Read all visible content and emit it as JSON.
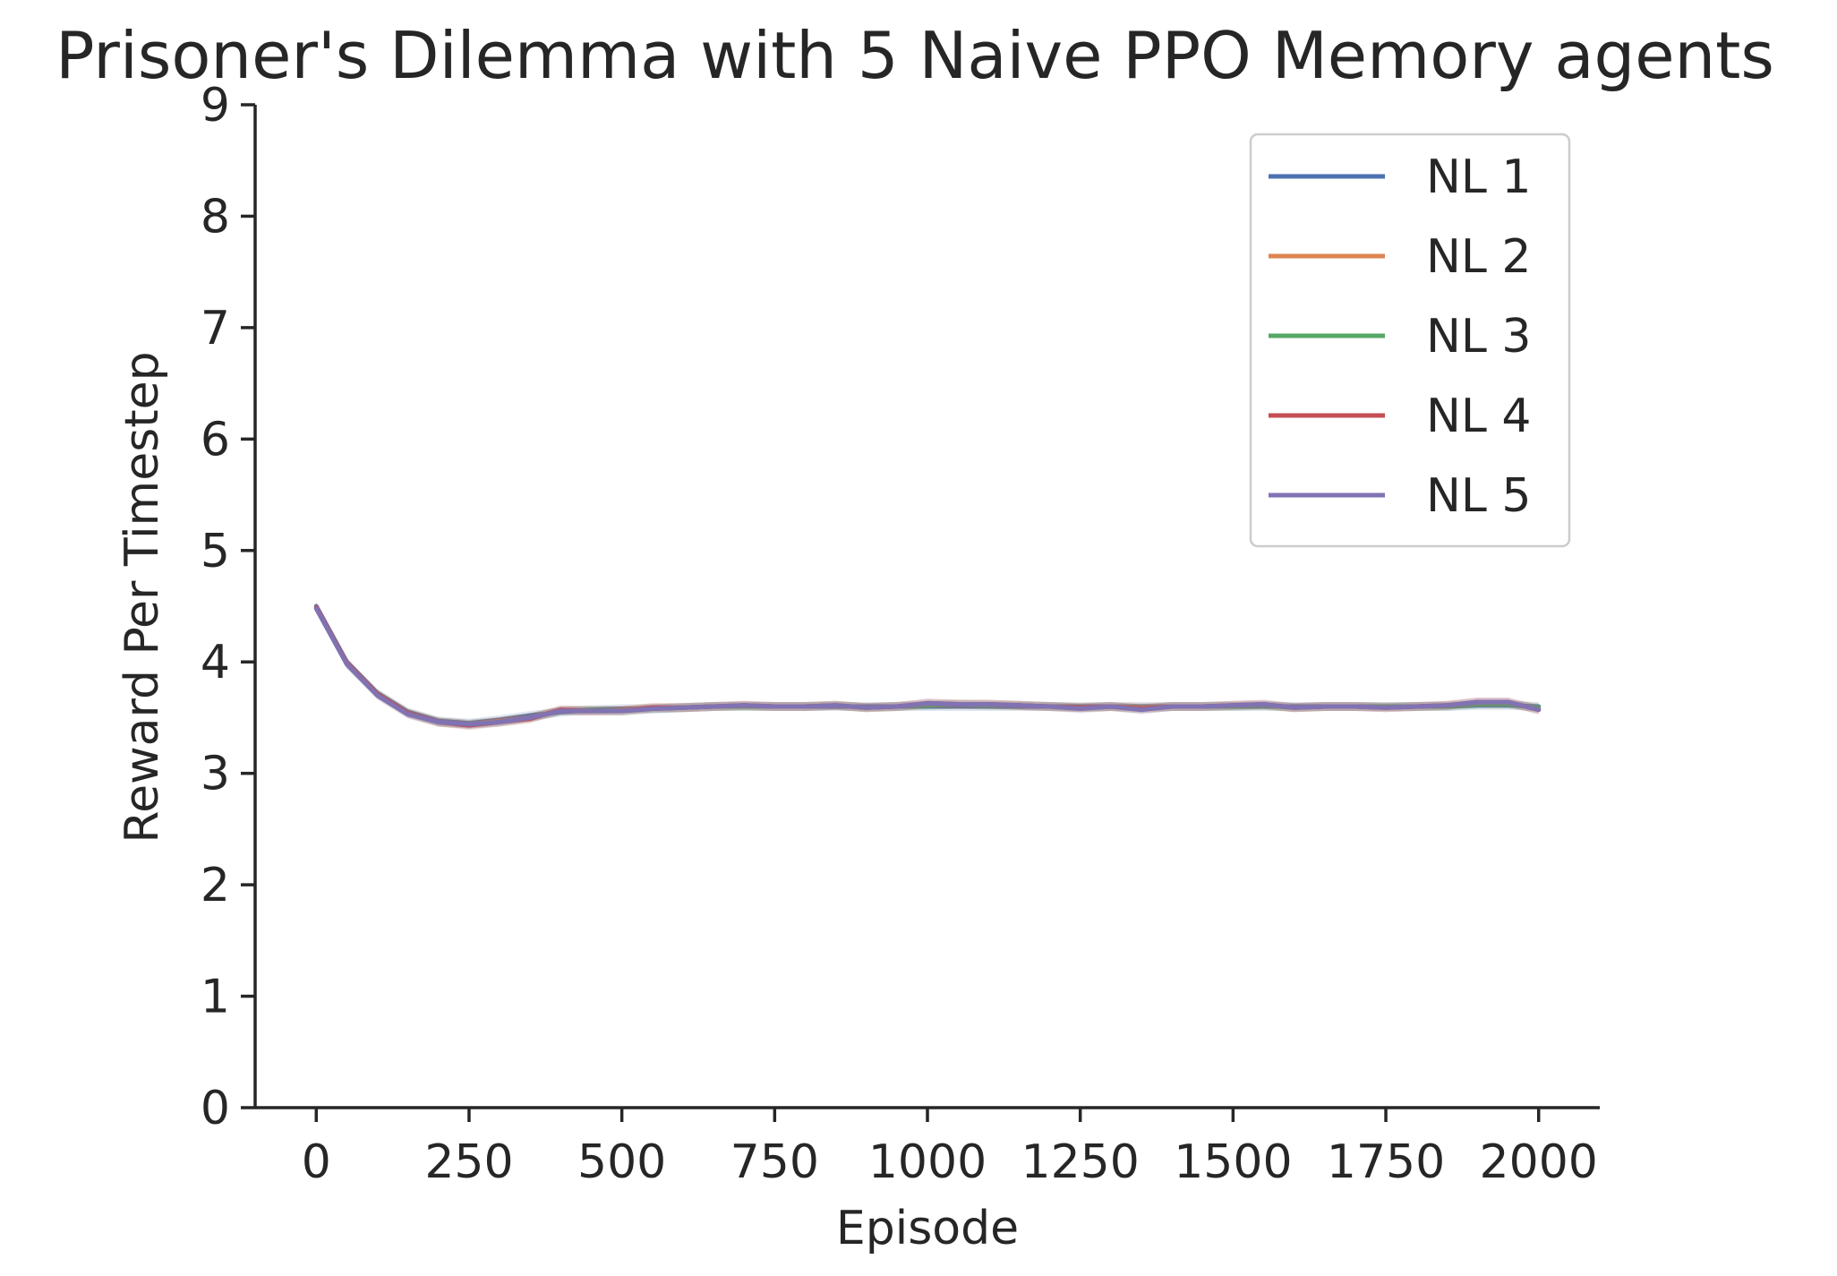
{
  "chart_data": {
    "type": "line",
    "title": "Prisoner's Dilemma with 5 Naive PPO Memory agents",
    "xlabel": "Episode",
    "ylabel": "Reward Per Timestep",
    "xlim": [
      -100,
      2100
    ],
    "ylim": [
      0,
      9
    ],
    "xticks": [
      0,
      250,
      500,
      750,
      1000,
      1250,
      1500,
      1750,
      2000
    ],
    "yticks": [
      0,
      1,
      2,
      3,
      4,
      5,
      6,
      7,
      8,
      9
    ],
    "grid": false,
    "legend_position": "top-right",
    "x": [
      0,
      50,
      100,
      150,
      200,
      250,
      300,
      350,
      400,
      450,
      500,
      550,
      600,
      650,
      700,
      750,
      800,
      850,
      900,
      950,
      1000,
      1050,
      1100,
      1150,
      1200,
      1250,
      1300,
      1350,
      1400,
      1450,
      1500,
      1550,
      1600,
      1650,
      1700,
      1750,
      1800,
      1850,
      1900,
      1950,
      2000
    ],
    "series": [
      {
        "name": "NL 1",
        "color": "#4c72b0",
        "values": [
          4.5,
          4.0,
          3.72,
          3.55,
          3.47,
          3.45,
          3.48,
          3.52,
          3.55,
          3.57,
          3.58,
          3.58,
          3.59,
          3.6,
          3.6,
          3.6,
          3.6,
          3.6,
          3.6,
          3.6,
          3.6,
          3.6,
          3.6,
          3.6,
          3.6,
          3.6,
          3.6,
          3.6,
          3.6,
          3.6,
          3.6,
          3.6,
          3.6,
          3.6,
          3.6,
          3.6,
          3.6,
          3.6,
          3.61,
          3.61,
          3.6
        ]
      },
      {
        "name": "NL 2",
        "color": "#dd8452",
        "values": [
          4.49,
          3.99,
          3.71,
          3.54,
          3.46,
          3.44,
          3.47,
          3.5,
          3.57,
          3.56,
          3.57,
          3.59,
          3.59,
          3.6,
          3.61,
          3.6,
          3.6,
          3.61,
          3.59,
          3.6,
          3.62,
          3.62,
          3.62,
          3.61,
          3.6,
          3.59,
          3.6,
          3.59,
          3.6,
          3.6,
          3.61,
          3.61,
          3.59,
          3.6,
          3.6,
          3.59,
          3.6,
          3.61,
          3.63,
          3.63,
          3.58
        ]
      },
      {
        "name": "NL 3",
        "color": "#55a868",
        "values": [
          4.48,
          3.98,
          3.71,
          3.54,
          3.46,
          3.44,
          3.46,
          3.5,
          3.56,
          3.57,
          3.56,
          3.58,
          3.59,
          3.6,
          3.6,
          3.6,
          3.6,
          3.61,
          3.59,
          3.6,
          3.61,
          3.62,
          3.61,
          3.61,
          3.6,
          3.59,
          3.6,
          3.58,
          3.6,
          3.6,
          3.6,
          3.61,
          3.59,
          3.6,
          3.6,
          3.6,
          3.6,
          3.6,
          3.62,
          3.62,
          3.59
        ]
      },
      {
        "name": "NL 4",
        "color": "#c44e52",
        "values": [
          4.49,
          3.99,
          3.71,
          3.54,
          3.46,
          3.43,
          3.46,
          3.49,
          3.57,
          3.56,
          3.56,
          3.59,
          3.59,
          3.6,
          3.61,
          3.6,
          3.6,
          3.61,
          3.59,
          3.6,
          3.63,
          3.62,
          3.62,
          3.61,
          3.6,
          3.59,
          3.6,
          3.58,
          3.6,
          3.6,
          3.61,
          3.62,
          3.59,
          3.6,
          3.6,
          3.59,
          3.6,
          3.61,
          3.64,
          3.64,
          3.57
        ]
      },
      {
        "name": "NL 5",
        "color": "#8172b3",
        "values": [
          4.48,
          3.98,
          3.7,
          3.53,
          3.46,
          3.44,
          3.46,
          3.5,
          3.56,
          3.56,
          3.56,
          3.58,
          3.59,
          3.6,
          3.61,
          3.6,
          3.6,
          3.61,
          3.59,
          3.6,
          3.63,
          3.62,
          3.62,
          3.61,
          3.6,
          3.58,
          3.6,
          3.57,
          3.6,
          3.6,
          3.61,
          3.62,
          3.59,
          3.6,
          3.6,
          3.59,
          3.6,
          3.61,
          3.64,
          3.64,
          3.57
        ]
      }
    ]
  }
}
